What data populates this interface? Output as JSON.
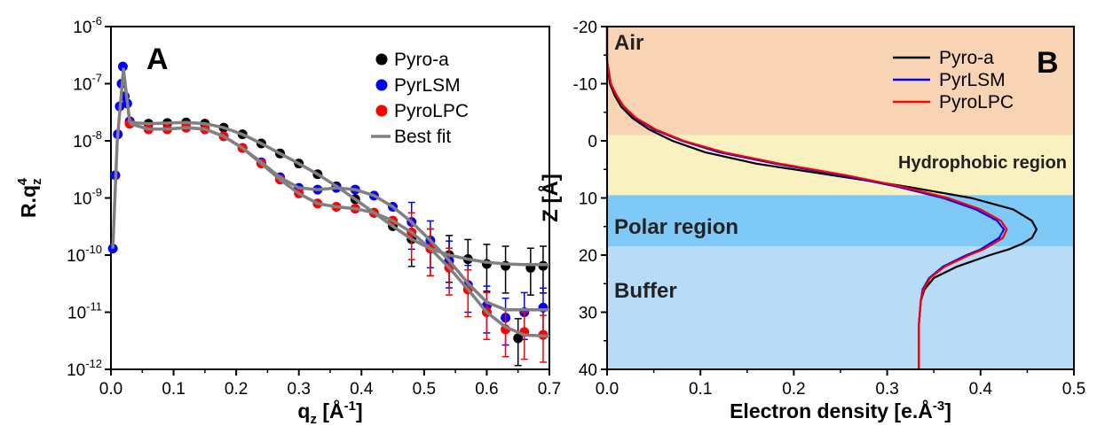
{
  "chart_data": [
    {
      "panel": "A",
      "type": "scatter",
      "panel_label": "A",
      "xlabel": "q",
      "xlabel_sub": "z",
      "xlabel_unit": " [Å",
      "xlabel_unit_sup": "-1",
      "xlabel_unit_end": "]",
      "ylabel": "R.q",
      "ylabel_sub": "z",
      "ylabel_sup": "4",
      "xlim": [
        0,
        0.7
      ],
      "ylim_log10": [
        -12,
        -6
      ],
      "y_scale": "log",
      "x_ticks": [
        "0.0",
        "0.1",
        "0.2",
        "0.3",
        "0.4",
        "0.5",
        "0.6",
        "0.7"
      ],
      "y_ticks": [
        {
          "base": "10",
          "exp": "-12"
        },
        {
          "base": "10",
          "exp": "-11"
        },
        {
          "base": "10",
          "exp": "-10"
        },
        {
          "base": "10",
          "exp": "-9"
        },
        {
          "base": "10",
          "exp": "-8"
        },
        {
          "base": "10",
          "exp": "-7"
        },
        {
          "base": "10",
          "exp": "-6"
        }
      ],
      "legend_position": "top-right",
      "legend": [
        "Pyro-a",
        "PyrLSM",
        "PyroLPC",
        "Best fit"
      ],
      "series": [
        {
          "name": "Pyro-a",
          "color": "#000000",
          "marker": "circle",
          "x": [
            0.03,
            0.06,
            0.09,
            0.12,
            0.15,
            0.18,
            0.21,
            0.24,
            0.27,
            0.3,
            0.33,
            0.36,
            0.39,
            0.42,
            0.45,
            0.48,
            0.51,
            0.54,
            0.57,
            0.6,
            0.63,
            0.65,
            0.67,
            0.69
          ],
          "y": [
            2e-08,
            2e-08,
            2.05e-08,
            2.1e-08,
            2e-08,
            1.7e-08,
            1.3e-08,
            9e-09,
            6e-09,
            4e-09,
            2.6e-09,
            1.6e-09,
            9.5e-10,
            5.5e-10,
            3.2e-10,
            1.9e-10,
            1.3e-10,
            1e-10,
            8.5e-11,
            7e-11,
            6.5e-11,
            3.5e-12,
            6e-11,
            6.5e-11
          ]
        },
        {
          "name": "PyrLSM",
          "color": "#0000ff",
          "marker": "circle",
          "x": [
            0.003,
            0.007,
            0.011,
            0.014,
            0.017,
            0.019,
            0.022,
            0.026,
            0.03,
            0.06,
            0.09,
            0.12,
            0.15,
            0.18,
            0.21,
            0.24,
            0.27,
            0.3,
            0.33,
            0.36,
            0.39,
            0.42,
            0.45,
            0.48,
            0.51,
            0.54,
            0.57,
            0.6,
            0.63,
            0.66,
            0.69
          ],
          "y": [
            1.3e-10,
            2.5e-09,
            1.3e-08,
            4e-08,
            1e-07,
            2e-07,
            6e-08,
            4.5e-08,
            2.2e-08,
            1.6e-08,
            1.6e-08,
            1.7e-08,
            1.6e-08,
            1.2e-08,
            7.5e-09,
            4.2e-09,
            2.3e-09,
            1.5e-09,
            1.4e-09,
            1.5e-09,
            1.4e-09,
            1.1e-09,
            7e-10,
            3.8e-10,
            1.8e-10,
            8e-11,
            3e-11,
            1.3e-11,
            8e-12,
            1e-11,
            1.2e-11
          ]
        },
        {
          "name": "PyroLPC",
          "color": "#ff0000",
          "marker": "circle",
          "x": [
            0.03,
            0.06,
            0.09,
            0.12,
            0.15,
            0.18,
            0.21,
            0.24,
            0.27,
            0.3,
            0.33,
            0.36,
            0.39,
            0.42,
            0.45,
            0.48,
            0.51,
            0.54,
            0.57,
            0.6,
            0.63,
            0.66,
            0.69
          ],
          "y": [
            2e-08,
            1.6e-08,
            1.6e-08,
            1.7e-08,
            1.6e-08,
            1.2e-08,
            7.5e-09,
            4e-09,
            2.1e-09,
            1.2e-09,
            8e-10,
            7e-10,
            6.5e-10,
            5.5e-10,
            4e-10,
            2.5e-10,
            1.3e-10,
            6e-11,
            2.5e-11,
            1e-11,
            5e-12,
            4.5e-12,
            4e-12
          ]
        }
      ],
      "fits": [
        {
          "name": "Best fit",
          "color": "#808080",
          "x": [
            0.003,
            0.01,
            0.02,
            0.03,
            0.06,
            0.09,
            0.12,
            0.15,
            0.18,
            0.21,
            0.24,
            0.27,
            0.3,
            0.33,
            0.36,
            0.39,
            0.42,
            0.45,
            0.48,
            0.51,
            0.54,
            0.57,
            0.6,
            0.63,
            0.66,
            0.69,
            0.7
          ],
          "y": [
            1.3e-10,
            1e-08,
            1.8e-07,
            2.1e-08,
            2e-08,
            2.05e-08,
            2.1e-08,
            2e-08,
            1.7e-08,
            1.3e-08,
            9e-09,
            6e-09,
            4e-09,
            2.6e-09,
            1.6e-09,
            9.5e-10,
            5.5e-10,
            3.2e-10,
            1.9e-10,
            1.3e-10,
            1e-10,
            8.5e-11,
            7.5e-11,
            7e-11,
            6.8e-11,
            6.8e-11,
            6.8e-11
          ]
        },
        {
          "name": "",
          "color": "#808080",
          "x": [
            0.03,
            0.06,
            0.09,
            0.12,
            0.15,
            0.18,
            0.21,
            0.24,
            0.27,
            0.3,
            0.33,
            0.36,
            0.39,
            0.42,
            0.45,
            0.48,
            0.51,
            0.54,
            0.57,
            0.6,
            0.63,
            0.66,
            0.7
          ],
          "y": [
            2e-08,
            1.6e-08,
            1.6e-08,
            1.7e-08,
            1.6e-08,
            1.2e-08,
            7.5e-09,
            4.2e-09,
            2.3e-09,
            1.5e-09,
            1.4e-09,
            1.5e-09,
            1.4e-09,
            1.1e-09,
            7e-10,
            3.8e-10,
            1.8e-10,
            8e-11,
            3.2e-11,
            1.5e-11,
            1.1e-11,
            1.1e-11,
            1.1e-11
          ]
        },
        {
          "name": "",
          "color": "#808080",
          "x": [
            0.03,
            0.06,
            0.09,
            0.12,
            0.15,
            0.18,
            0.21,
            0.24,
            0.27,
            0.3,
            0.33,
            0.36,
            0.39,
            0.42,
            0.45,
            0.48,
            0.51,
            0.54,
            0.57,
            0.6,
            0.63,
            0.66,
            0.7
          ],
          "y": [
            2e-08,
            1.6e-08,
            1.6e-08,
            1.7e-08,
            1.6e-08,
            1.2e-08,
            7.5e-09,
            4e-09,
            2.1e-09,
            1.2e-09,
            8e-10,
            7e-10,
            6.5e-10,
            5.5e-10,
            4e-10,
            2.5e-10,
            1.3e-10,
            6e-11,
            2.5e-11,
            1e-11,
            5.5e-12,
            4e-12,
            3.8e-12
          ]
        }
      ]
    },
    {
      "panel": "B",
      "type": "line",
      "panel_label": "B",
      "xlabel": "Electron density [e.Å",
      "xlabel_sup": "-3",
      "xlabel_end": "]",
      "ylabel": "Z [Å]",
      "xlim": [
        0,
        0.5
      ],
      "ylim": [
        -20,
        40
      ],
      "y_inverted": true,
      "x_ticks": [
        "0.0",
        "0.1",
        "0.2",
        "0.3",
        "0.4",
        "0.5"
      ],
      "y_ticks": [
        "-20",
        "-10",
        "0",
        "10",
        "20",
        "30",
        "40"
      ],
      "legend_position": "top-right",
      "regions": [
        {
          "label": "Air",
          "from": -20,
          "to": -1,
          "color": "#f8d4b4"
        },
        {
          "label": "Hydrophobic region",
          "from": -1,
          "to": 9.5,
          "color": "#faf1c0"
        },
        {
          "label": "Polar region",
          "from": 9.5,
          "to": 18.5,
          "color": "#7ec9f5"
        },
        {
          "label": "Buffer",
          "from": 18.5,
          "to": 40,
          "color": "#b8dcf8"
        }
      ],
      "series": [
        {
          "name": "Pyro-a",
          "color": "#000000",
          "z": [
            -20,
            -14,
            -10,
            -8,
            -6,
            -4,
            -2,
            0,
            2,
            4,
            6,
            8,
            10,
            12,
            14,
            15.5,
            17,
            18,
            19,
            20,
            22,
            24,
            26,
            28,
            32,
            36,
            40
          ],
          "rho": [
            0.0,
            0.0,
            0.003,
            0.008,
            0.015,
            0.027,
            0.045,
            0.07,
            0.105,
            0.16,
            0.24,
            0.32,
            0.39,
            0.435,
            0.455,
            0.46,
            0.455,
            0.445,
            0.43,
            0.41,
            0.375,
            0.35,
            0.34,
            0.336,
            0.334,
            0.334,
            0.334
          ]
        },
        {
          "name": "PyrLSM",
          "color": "#0000ff",
          "z": [
            -20,
            -14,
            -10,
            -8,
            -6,
            -4,
            -2,
            0,
            2,
            4,
            6,
            8,
            10,
            12,
            14,
            15.5,
            17,
            18,
            19,
            20,
            22,
            24,
            26,
            28,
            32,
            36,
            40
          ],
          "rho": [
            0.0,
            0.0,
            0.004,
            0.01,
            0.018,
            0.03,
            0.05,
            0.08,
            0.12,
            0.18,
            0.25,
            0.31,
            0.36,
            0.395,
            0.418,
            0.425,
            0.42,
            0.41,
            0.4,
            0.385,
            0.36,
            0.345,
            0.338,
            0.336,
            0.334,
            0.334,
            0.334
          ]
        },
        {
          "name": "PyroLPC",
          "color": "#ff0000",
          "z": [
            -20,
            -14,
            -10,
            -8,
            -6,
            -4,
            -2,
            0,
            2,
            4,
            6,
            8,
            10,
            12,
            14,
            15.5,
            17,
            18,
            19,
            20,
            22,
            24,
            26,
            28,
            32,
            36,
            40
          ],
          "rho": [
            0.0,
            0.0,
            0.004,
            0.01,
            0.018,
            0.031,
            0.052,
            0.082,
            0.125,
            0.185,
            0.255,
            0.315,
            0.365,
            0.4,
            0.422,
            0.428,
            0.424,
            0.414,
            0.403,
            0.388,
            0.362,
            0.346,
            0.339,
            0.336,
            0.334,
            0.334,
            0.334
          ]
        }
      ]
    }
  ]
}
